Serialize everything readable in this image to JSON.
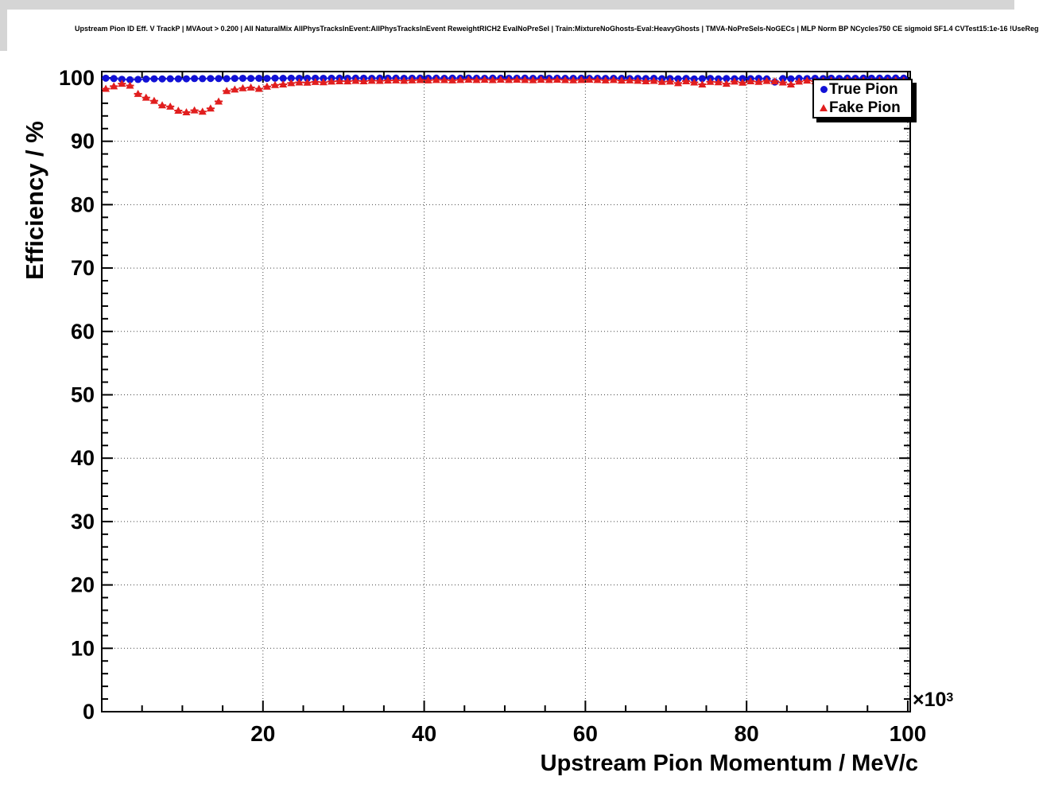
{
  "chart_data": {
    "type": "scatter",
    "title": "Upstream Pion ID Eff. V TrackP | MVAout > 0.200 | All NaturalMix AllPhysTracksInEvent:AllPhysTracksInEvent ReweightRICH2 EvalNoPreSel | Train:MixtureNoGhosts-Eval:HeavyGhosts | TMVA-NoPreSels-NoGECs | MLP Norm BP NCycles750 CE sigmoid SF1.4 CVTest15:1e-16 !UseReg",
    "xlabel": "Upstream Pion Momentum / MeV/c",
    "ylabel": "Efficiency / %",
    "x_scale": {
      "base": "×10",
      "exp": "3"
    },
    "xlim": [
      0,
      100.3
    ],
    "ylim": [
      0,
      101
    ],
    "x_ticks": [
      20,
      40,
      60,
      80,
      100
    ],
    "y_ticks": [
      0,
      10,
      20,
      30,
      40,
      50,
      60,
      70,
      80,
      90,
      100
    ],
    "x_minor_step": 5,
    "y_minor_step": 2,
    "grid": "dotted",
    "grid_color": "#444444",
    "legend_position": "top-right",
    "bin_half_width": 0.5,
    "series": [
      {
        "name": "True Pion",
        "marker": "circle",
        "color": "#1111d6",
        "x": [
          0.5,
          1.5,
          2.5,
          3.5,
          4.5,
          5.5,
          6.5,
          7.5,
          8.5,
          9.5,
          10.5,
          11.5,
          12.5,
          13.5,
          14.5,
          15.5,
          16.5,
          17.5,
          18.5,
          19.5,
          20.5,
          21.5,
          22.5,
          23.5,
          24.5,
          25.5,
          26.5,
          27.5,
          28.5,
          29.5,
          30.5,
          31.5,
          32.5,
          33.5,
          34.5,
          35.5,
          36.5,
          37.5,
          38.5,
          39.5,
          40.5,
          41.5,
          42.5,
          43.5,
          44.5,
          45.5,
          46.5,
          47.5,
          48.5,
          49.5,
          50.5,
          51.5,
          52.5,
          53.5,
          54.5,
          55.5,
          56.5,
          57.5,
          58.5,
          59.5,
          60.5,
          61.5,
          62.5,
          63.5,
          64.5,
          65.5,
          66.5,
          67.5,
          68.5,
          69.5,
          70.5,
          71.5,
          72.5,
          73.5,
          74.5,
          75.5,
          76.5,
          77.5,
          78.5,
          79.5,
          80.5,
          81.5,
          82.5,
          83.5,
          84.5,
          85.5,
          86.5,
          87.5,
          88.5,
          89.5,
          90.5,
          91.5,
          92.5,
          93.5,
          94.5,
          95.5,
          96.5,
          97.5,
          98.5,
          99.5
        ],
        "y": [
          99.95,
          99.9,
          99.78,
          99.72,
          99.76,
          99.82,
          99.86,
          99.84,
          99.87,
          99.85,
          99.86,
          99.9,
          99.88,
          99.91,
          99.9,
          99.88,
          99.92,
          99.94,
          99.92,
          99.94,
          99.92,
          99.95,
          99.93,
          99.95,
          99.94,
          99.93,
          99.95,
          99.94,
          99.95,
          99.96,
          99.94,
          99.96,
          99.95,
          99.94,
          99.96,
          99.95,
          99.96,
          99.94,
          99.95,
          99.96,
          99.95,
          99.96,
          99.94,
          99.96,
          99.95,
          99.96,
          99.95,
          99.94,
          99.96,
          99.95,
          99.94,
          99.95,
          99.96,
          99.93,
          99.95,
          99.94,
          99.95,
          99.93,
          99.94,
          99.95,
          99.93,
          99.94,
          99.92,
          99.94,
          99.93,
          99.91,
          99.92,
          99.9,
          99.93,
          99.88,
          99.91,
          99.86,
          99.92,
          99.84,
          99.89,
          99.92,
          99.85,
          99.9,
          99.87,
          99.91,
          99.88,
          99.92,
          99.85,
          99.35,
          99.9,
          99.86,
          99.93,
          99.89,
          99.94,
          99.91,
          99.95,
          99.92,
          99.96,
          99.94,
          99.97,
          99.95,
          99.96,
          99.97,
          99.98,
          99.96
        ],
        "yerr": [
          0.1,
          0.08,
          0.07,
          0.04,
          0.04,
          0.04,
          0.04,
          0.04,
          0.04,
          0.04,
          0.04,
          0.04,
          0.04,
          0.04,
          0.04,
          0.04,
          0.04,
          0.04,
          0.04,
          0.04,
          0.04,
          0.04,
          0.04,
          0.04,
          0.04,
          0.04,
          0.04,
          0.04,
          0.04,
          0.04,
          0.04,
          0.04,
          0.04,
          0.04,
          0.04,
          0.04,
          0.04,
          0.04,
          0.04,
          0.04,
          0.04,
          0.04,
          0.04,
          0.04,
          0.04,
          0.04,
          0.04,
          0.04,
          0.04,
          0.04,
          0.04,
          0.04,
          0.04,
          0.04,
          0.04,
          0.04,
          0.04,
          0.04,
          0.04,
          0.04,
          0.06,
          0.06,
          0.06,
          0.06,
          0.06,
          0.06,
          0.06,
          0.06,
          0.06,
          0.06,
          0.1,
          0.1,
          0.1,
          0.1,
          0.1,
          0.1,
          0.1,
          0.1,
          0.1,
          0.1,
          0.14,
          0.14,
          0.14,
          0.45,
          0.14,
          0.14,
          0.14,
          0.14,
          0.14,
          0.14,
          0.1,
          0.1,
          0.1,
          0.1,
          0.1,
          0.1,
          0.1,
          0.1,
          0.1,
          0.1
        ]
      },
      {
        "name": "Fake Pion",
        "marker": "triangle",
        "color": "#e11e1e",
        "x": [
          0.5,
          1.5,
          2.5,
          3.5,
          4.5,
          5.5,
          6.5,
          7.5,
          8.5,
          9.5,
          10.5,
          11.5,
          12.5,
          13.5,
          14.5,
          15.5,
          16.5,
          17.5,
          18.5,
          19.5,
          20.5,
          21.5,
          22.5,
          23.5,
          24.5,
          25.5,
          26.5,
          27.5,
          28.5,
          29.5,
          30.5,
          31.5,
          32.5,
          33.5,
          34.5,
          35.5,
          36.5,
          37.5,
          38.5,
          39.5,
          40.5,
          41.5,
          42.5,
          43.5,
          44.5,
          45.5,
          46.5,
          47.5,
          48.5,
          49.5,
          50.5,
          51.5,
          52.5,
          53.5,
          54.5,
          55.5,
          56.5,
          57.5,
          58.5,
          59.5,
          60.5,
          61.5,
          62.5,
          63.5,
          64.5,
          65.5,
          66.5,
          67.5,
          68.5,
          69.5,
          70.5,
          71.5,
          72.5,
          73.5,
          74.5,
          75.5,
          76.5,
          77.5,
          78.5,
          79.5,
          80.5,
          81.5,
          82.5,
          83.5,
          84.5,
          85.5,
          86.5,
          87.5,
          88.5,
          89.5,
          90.5,
          91.5,
          92.5,
          93.5,
          94.5,
          95.5,
          96.5,
          97.5,
          98.5,
          99.5
        ],
        "y": [
          98.3,
          98.7,
          99.1,
          98.8,
          97.5,
          96.9,
          96.4,
          95.7,
          95.5,
          94.85,
          94.6,
          94.9,
          94.7,
          95.2,
          96.3,
          97.95,
          98.2,
          98.4,
          98.5,
          98.3,
          98.65,
          98.9,
          99.0,
          99.2,
          99.3,
          99.28,
          99.38,
          99.33,
          99.45,
          99.5,
          99.48,
          99.55,
          99.5,
          99.58,
          99.55,
          99.6,
          99.63,
          99.58,
          99.64,
          99.68,
          99.64,
          99.7,
          99.68,
          99.64,
          99.7,
          99.74,
          99.7,
          99.73,
          99.69,
          99.74,
          99.7,
          99.74,
          99.7,
          99.66,
          99.73,
          99.7,
          99.74,
          99.69,
          99.65,
          99.7,
          99.74,
          99.7,
          99.64,
          99.7,
          99.6,
          99.64,
          99.58,
          99.5,
          99.55,
          99.4,
          99.45,
          99.2,
          99.5,
          99.3,
          99.0,
          99.4,
          99.34,
          99.1,
          99.44,
          99.28,
          99.5,
          99.4,
          99.54,
          99.48,
          99.3,
          99.0,
          99.44,
          99.6,
          99.5,
          99.54,
          99.6,
          99.48,
          99.64,
          99.55,
          99.6,
          99.5,
          99.6,
          99.56,
          99.64,
          99.6
        ],
        "yerr": [
          0.25,
          0.18,
          0.12,
          0.12,
          0.12,
          0.1,
          0.1,
          0.1,
          0.1,
          0.1,
          0.1,
          0.1,
          0.1,
          0.1,
          0.1,
          0.07,
          0.07,
          0.07,
          0.07,
          0.07,
          0.07,
          0.07,
          0.07,
          0.07,
          0.07,
          0.05,
          0.05,
          0.05,
          0.05,
          0.05,
          0.05,
          0.05,
          0.05,
          0.05,
          0.05,
          0.05,
          0.05,
          0.05,
          0.05,
          0.05,
          0.05,
          0.05,
          0.05,
          0.05,
          0.05,
          0.05,
          0.05,
          0.05,
          0.05,
          0.05,
          0.05,
          0.05,
          0.05,
          0.05,
          0.05,
          0.05,
          0.05,
          0.05,
          0.05,
          0.05,
          0.1,
          0.1,
          0.1,
          0.1,
          0.1,
          0.1,
          0.1,
          0.1,
          0.1,
          0.1,
          0.2,
          0.35,
          0.2,
          0.25,
          0.4,
          0.2,
          0.2,
          0.35,
          0.2,
          0.25,
          0.2,
          0.2,
          0.2,
          0.2,
          0.25,
          0.45,
          0.2,
          0.18,
          0.2,
          0.2,
          0.18,
          0.2,
          0.18,
          0.18,
          0.18,
          0.2,
          0.18,
          0.18,
          0.18,
          0.18
        ]
      }
    ]
  }
}
